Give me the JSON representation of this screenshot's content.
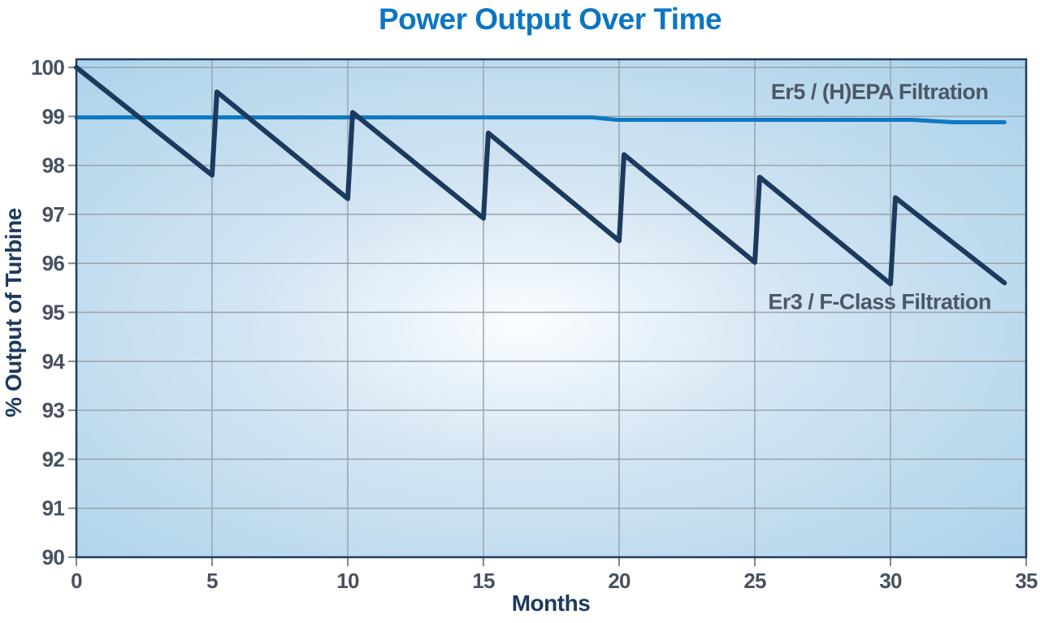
{
  "title": "Power Output Over Time",
  "colors": {
    "title_blue": "#0c76c3",
    "axis_title_navy": "#1c3a5e",
    "tick_label_gray": "#47525f",
    "series_label_slate": "#4d5765",
    "gridline_gray": "#9aa3ad",
    "plot_border_navy": "#203d60",
    "tick_mark_gray": "#7d8894",
    "plot_bg_edge": "#abd2ea",
    "plot_bg_mid": "#d3e5f3",
    "plot_bg_center": "#fbfdff",
    "er5_line_blue": "#0f79c1",
    "er3_line_navy": "#1b3a5e"
  },
  "chart_data": {
    "type": "line",
    "title": "Power Output Over Time",
    "xlabel": "Months",
    "ylabel": "% Output of Turbine",
    "xlim": [
      0,
      35
    ],
    "ylim": [
      90,
      100.2
    ],
    "x_ticks": [
      0,
      5,
      10,
      15,
      20,
      25,
      30,
      35
    ],
    "y_ticks": [
      90,
      91,
      92,
      93,
      94,
      95,
      96,
      97,
      98,
      99,
      100
    ],
    "grid": true,
    "legend_position": "labels-inside-plot",
    "series": [
      {
        "name": "Er5 / (H)EPA Filtration",
        "color": "#0f79c1",
        "stroke_width": 5,
        "points": [
          [
            0,
            98.98
          ],
          [
            19,
            98.98
          ],
          [
            19.9,
            98.93
          ],
          [
            30.8,
            98.93
          ],
          [
            32.3,
            98.88
          ],
          [
            34.2,
            98.88
          ]
        ],
        "label_pos": {
          "month": 29.6,
          "value": 99.35
        }
      },
      {
        "name": "Er3 / F-Class Filtration",
        "color": "#1b3a5e",
        "stroke_width": 6,
        "points": [
          [
            0,
            100
          ],
          [
            5,
            97.8
          ],
          [
            5.18,
            99.5
          ],
          [
            10,
            97.32
          ],
          [
            10.18,
            99.08
          ],
          [
            15,
            96.92
          ],
          [
            15.18,
            98.66
          ],
          [
            20,
            96.46
          ],
          [
            20.18,
            98.22
          ],
          [
            25,
            96.02
          ],
          [
            25.18,
            97.76
          ],
          [
            30,
            95.58
          ],
          [
            30.18,
            97.34
          ],
          [
            34.2,
            95.6
          ]
        ],
        "label_pos": {
          "month": 29.6,
          "value": 95.07
        }
      }
    ],
    "sawtooth_summary": {
      "filter_change_interval_months": 5,
      "peaks": [
        100,
        99.5,
        99.1,
        98.65,
        98.2,
        97.75,
        97.35
      ],
      "troughs": [
        97.8,
        97.3,
        96.9,
        96.45,
        96.0,
        95.6
      ],
      "decline_rate_pct_per_month": 0.44
    }
  }
}
